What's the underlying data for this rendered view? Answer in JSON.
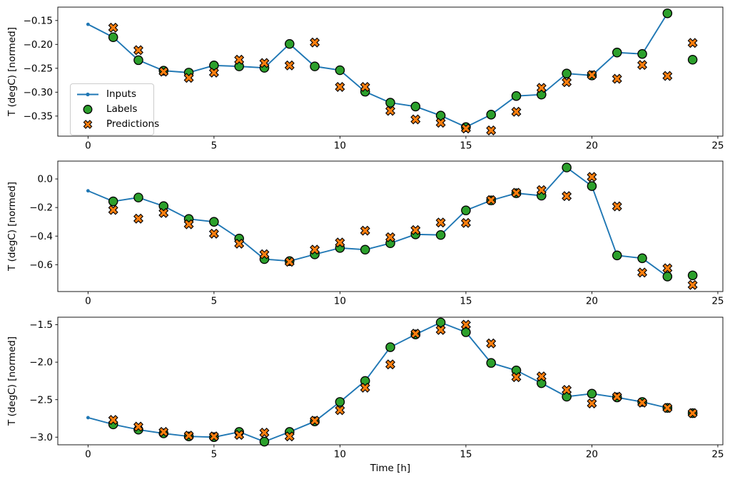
{
  "figure": {
    "xlabel": "Time [h]",
    "ylabel": "T (degC) [normed]",
    "background": "#ffffff",
    "colors": {
      "inputs": "#1f77b4",
      "labels": "#2ca02c",
      "predictions": "#ff7f0e",
      "marker_edge": "#000000",
      "spine": "#000000",
      "text": "#000000",
      "legend_border": "#cccccc"
    }
  },
  "legend": {
    "items": [
      {
        "label": "Inputs",
        "marker": "line-with-dot"
      },
      {
        "label": "Labels",
        "marker": "filled-circle"
      },
      {
        "label": "Predictions",
        "marker": "thick-x"
      }
    ]
  },
  "chart_data": [
    {
      "type": "line",
      "panel": 1,
      "ylabel": "T (degC) [normed]",
      "xlim": [
        -1.2,
        25.2
      ],
      "ylim": [
        -0.392,
        -0.122
      ],
      "xticks": [
        0,
        5,
        10,
        15,
        20,
        25
      ],
      "xtick_labels": [
        "0",
        "5",
        "10",
        "15",
        "20",
        "25"
      ],
      "yticks": [
        -0.15,
        -0.2,
        -0.25,
        -0.3,
        -0.35
      ],
      "ytick_labels": [
        "−0.15",
        "−0.20",
        "−0.25",
        "−0.30",
        "−0.35"
      ],
      "grid": false,
      "legend_position": "left-center-of-panel-1",
      "series": [
        {
          "name": "Inputs",
          "x": [
            0,
            1,
            2,
            3,
            4,
            5,
            6,
            7,
            8,
            9,
            10,
            11,
            12,
            13,
            14,
            15,
            16,
            17,
            18,
            19,
            20,
            21,
            22,
            23
          ],
          "y": [
            -0.158,
            -0.185,
            -0.233,
            -0.255,
            -0.259,
            -0.244,
            -0.246,
            -0.249,
            -0.199,
            -0.246,
            -0.254,
            -0.299,
            -0.322,
            -0.33,
            -0.349,
            -0.373,
            -0.347,
            -0.308,
            -0.305,
            -0.261,
            -0.265,
            -0.217,
            -0.22,
            -0.135
          ]
        },
        {
          "name": "Labels",
          "x": [
            1,
            2,
            3,
            4,
            5,
            6,
            7,
            8,
            9,
            10,
            11,
            12,
            13,
            14,
            15,
            16,
            17,
            18,
            19,
            20,
            21,
            22,
            23,
            24
          ],
          "y": [
            -0.185,
            -0.233,
            -0.255,
            -0.259,
            -0.244,
            -0.246,
            -0.249,
            -0.199,
            -0.246,
            -0.254,
            -0.299,
            -0.322,
            -0.33,
            -0.349,
            -0.373,
            -0.347,
            -0.308,
            -0.305,
            -0.261,
            -0.265,
            -0.217,
            -0.22,
            -0.135,
            -0.232
          ]
        },
        {
          "name": "Predictions",
          "x": [
            1,
            2,
            3,
            4,
            5,
            6,
            7,
            8,
            9,
            10,
            11,
            12,
            13,
            14,
            15,
            16,
            17,
            18,
            19,
            20,
            21,
            22,
            23,
            24
          ],
          "y": [
            -0.165,
            -0.212,
            -0.257,
            -0.27,
            -0.259,
            -0.232,
            -0.239,
            -0.244,
            -0.196,
            -0.289,
            -0.289,
            -0.339,
            -0.357,
            -0.364,
            -0.376,
            -0.38,
            -0.341,
            -0.291,
            -0.279,
            -0.264,
            -0.272,
            -0.243,
            -0.266,
            -0.197
          ]
        }
      ]
    },
    {
      "type": "line",
      "panel": 2,
      "ylabel": "T (degC) [normed]",
      "xlim": [
        -1.2,
        25.2
      ],
      "ylim": [
        -0.788,
        0.125
      ],
      "xticks": [
        0,
        5,
        10,
        15,
        20,
        25
      ],
      "xtick_labels": [
        "0",
        "5",
        "10",
        "15",
        "20",
        "25"
      ],
      "yticks": [
        0.0,
        -0.2,
        -0.4,
        -0.6
      ],
      "ytick_labels": [
        "0.0",
        "−0.2",
        "−0.4",
        "−0.6"
      ],
      "grid": false,
      "series": [
        {
          "name": "Inputs",
          "x": [
            0,
            1,
            2,
            3,
            4,
            5,
            6,
            7,
            8,
            9,
            10,
            11,
            12,
            13,
            14,
            15,
            16,
            17,
            18,
            19,
            20,
            21,
            22,
            23
          ],
          "y": [
            -0.083,
            -0.157,
            -0.13,
            -0.19,
            -0.28,
            -0.3,
            -0.417,
            -0.561,
            -0.575,
            -0.528,
            -0.483,
            -0.495,
            -0.45,
            -0.388,
            -0.392,
            -0.22,
            -0.15,
            -0.1,
            -0.117,
            0.08,
            -0.05,
            -0.535,
            -0.555,
            -0.683
          ]
        },
        {
          "name": "Labels",
          "x": [
            1,
            2,
            3,
            4,
            5,
            6,
            7,
            8,
            9,
            10,
            11,
            12,
            13,
            14,
            15,
            16,
            17,
            18,
            19,
            20,
            21,
            22,
            23,
            24
          ],
          "y": [
            -0.157,
            -0.13,
            -0.19,
            -0.28,
            -0.3,
            -0.417,
            -0.561,
            -0.575,
            -0.528,
            -0.483,
            -0.495,
            -0.45,
            -0.388,
            -0.392,
            -0.22,
            -0.15,
            -0.1,
            -0.117,
            0.08,
            -0.05,
            -0.535,
            -0.555,
            -0.683,
            -0.675
          ]
        },
        {
          "name": "Predictions",
          "x": [
            1,
            2,
            3,
            4,
            5,
            6,
            7,
            8,
            9,
            10,
            11,
            12,
            13,
            14,
            15,
            16,
            17,
            18,
            19,
            20,
            21,
            22,
            23,
            24
          ],
          "y": [
            -0.217,
            -0.278,
            -0.238,
            -0.317,
            -0.383,
            -0.453,
            -0.527,
            -0.58,
            -0.495,
            -0.445,
            -0.362,
            -0.408,
            -0.358,
            -0.305,
            -0.308,
            -0.148,
            -0.097,
            -0.078,
            -0.12,
            0.014,
            -0.192,
            -0.655,
            -0.625,
            -0.742
          ]
        }
      ]
    },
    {
      "type": "line",
      "panel": 3,
      "ylabel": "T (degC) [normed]",
      "xlabel": "Time [h]",
      "xlim": [
        -1.2,
        25.2
      ],
      "ylim": [
        -3.102,
        -1.4
      ],
      "xticks": [
        0,
        5,
        10,
        15,
        20,
        25
      ],
      "xtick_labels": [
        "0",
        "5",
        "10",
        "15",
        "20",
        "25"
      ],
      "yticks": [
        -1.5,
        -2.0,
        -2.5,
        -3.0
      ],
      "ytick_labels": [
        "−1.5",
        "−2.0",
        "−2.5",
        "−3.0"
      ],
      "grid": false,
      "series": [
        {
          "name": "Inputs",
          "x": [
            0,
            1,
            2,
            3,
            4,
            5,
            6,
            7,
            8,
            9,
            10,
            11,
            12,
            13,
            14,
            15,
            16,
            17,
            18,
            19,
            20,
            21,
            22,
            23
          ],
          "y": [
            -2.74,
            -2.83,
            -2.9,
            -2.95,
            -2.99,
            -3.0,
            -2.93,
            -3.06,
            -2.93,
            -2.79,
            -2.53,
            -2.25,
            -1.8,
            -1.63,
            -1.47,
            -1.6,
            -2.01,
            -2.11,
            -2.28,
            -2.46,
            -2.42,
            -2.47,
            -2.53,
            -2.61
          ]
        },
        {
          "name": "Labels",
          "x": [
            1,
            2,
            3,
            4,
            5,
            6,
            7,
            8,
            9,
            10,
            11,
            12,
            13,
            14,
            15,
            16,
            17,
            18,
            19,
            20,
            21,
            22,
            23,
            24
          ],
          "y": [
            -2.83,
            -2.9,
            -2.95,
            -2.99,
            -3.0,
            -2.93,
            -3.06,
            -2.93,
            -2.79,
            -2.53,
            -2.25,
            -1.8,
            -1.63,
            -1.47,
            -1.6,
            -2.01,
            -2.11,
            -2.28,
            -2.46,
            -2.42,
            -2.47,
            -2.53,
            -2.61,
            -2.68
          ]
        },
        {
          "name": "Predictions",
          "x": [
            1,
            2,
            3,
            4,
            5,
            6,
            7,
            8,
            9,
            10,
            11,
            12,
            13,
            14,
            15,
            16,
            17,
            18,
            19,
            20,
            21,
            22,
            23,
            24
          ],
          "y": [
            -2.77,
            -2.86,
            -2.93,
            -2.98,
            -2.99,
            -2.97,
            -2.94,
            -2.99,
            -2.78,
            -2.64,
            -2.34,
            -2.03,
            -1.62,
            -1.57,
            -1.5,
            -1.75,
            -2.2,
            -2.19,
            -2.37,
            -2.55,
            -2.46,
            -2.54,
            -2.61,
            -2.68
          ]
        }
      ]
    }
  ]
}
